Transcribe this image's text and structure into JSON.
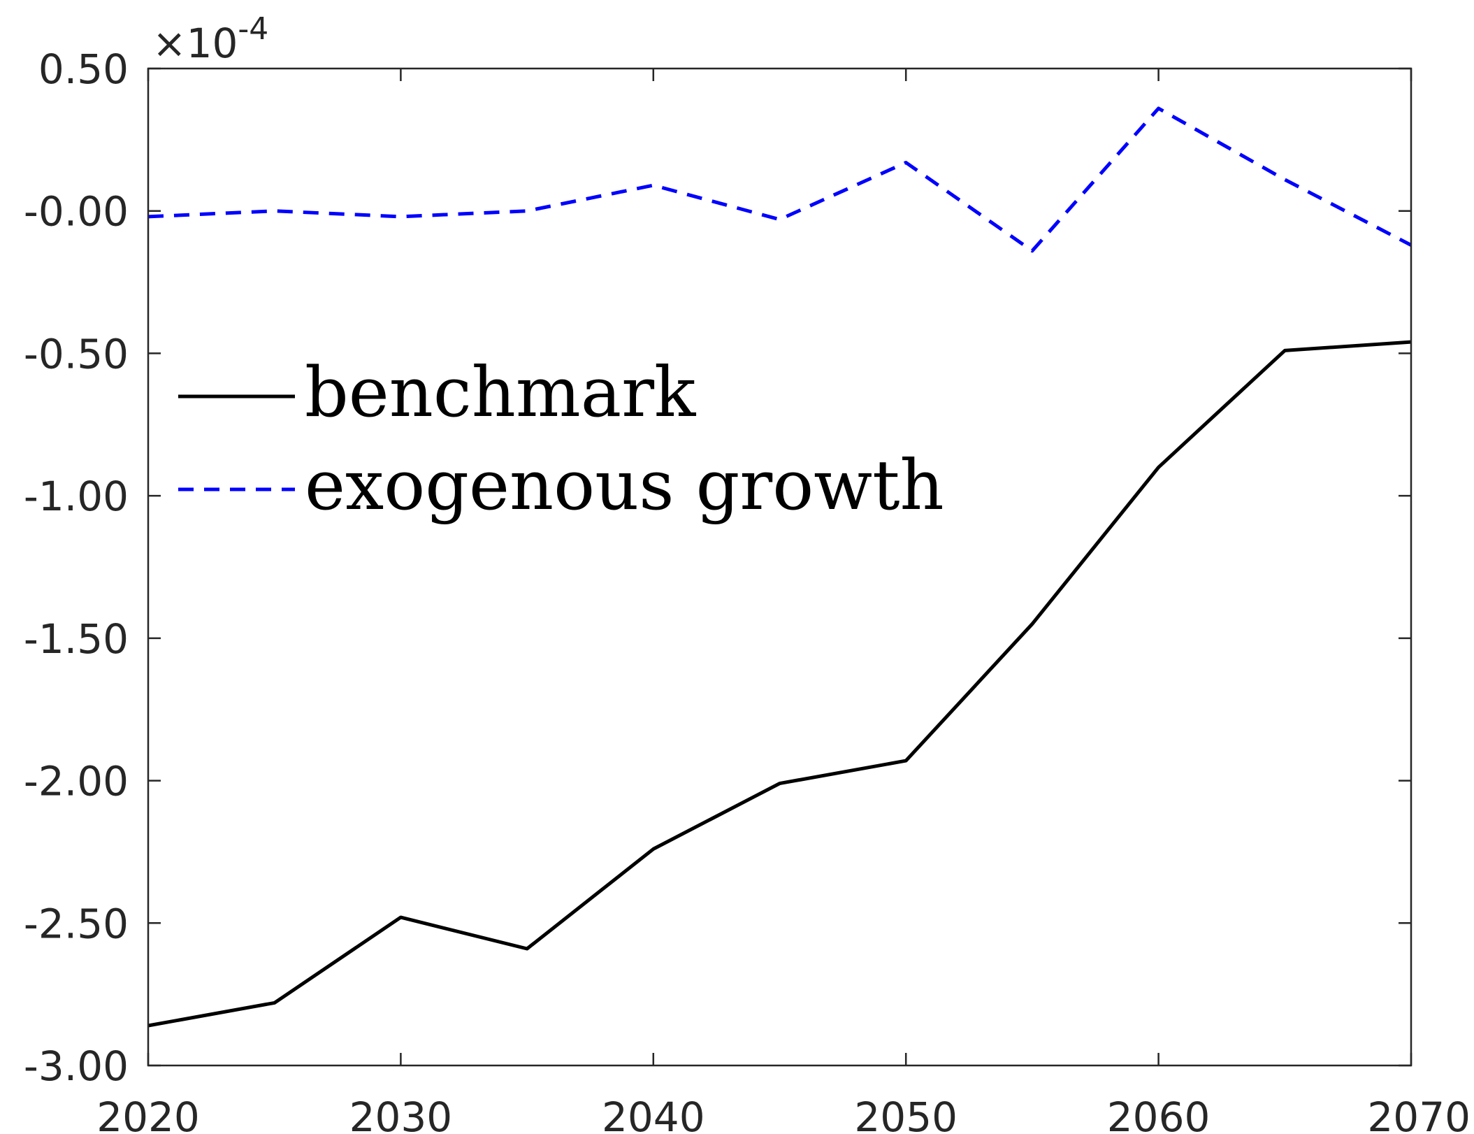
{
  "chart_data": {
    "type": "line",
    "x": [
      2020,
      2025,
      2030,
      2035,
      2040,
      2045,
      2050,
      2055,
      2060,
      2065,
      2070
    ],
    "xlim": [
      2020,
      2070
    ],
    "ylim": [
      -3.0,
      0.5
    ],
    "x_ticks": [
      2020,
      2030,
      2040,
      2050,
      2060,
      2070
    ],
    "x_tick_labels": [
      "2020",
      "2030",
      "2040",
      "2050",
      "2060",
      "2070"
    ],
    "y_ticks": [
      0.5,
      0.0,
      -0.5,
      -1.0,
      -1.5,
      -2.0,
      -2.5,
      -3.0
    ],
    "y_tick_labels": [
      "0.50",
      "-0.00",
      "-0.50",
      "-1.00",
      "-1.50",
      "-2.00",
      "-2.50",
      "-3.00"
    ],
    "y_multiplier": {
      "base": "×10",
      "exponent": "-4"
    },
    "grid": false,
    "legend_position": "center-left",
    "series": [
      {
        "name": "benchmark",
        "color": "#000000",
        "style": "solid",
        "values": [
          -2.86,
          -2.78,
          -2.48,
          -2.59,
          -2.24,
          -2.01,
          -1.93,
          -1.45,
          -0.9,
          -0.49,
          -0.46
        ]
      },
      {
        "name": "exogenous growth",
        "color": "#0000ff",
        "style": "dashed",
        "values": [
          -0.02,
          0.0,
          -0.02,
          0.0,
          0.09,
          -0.03,
          0.17,
          -0.14,
          0.36,
          0.11,
          -0.12
        ]
      }
    ]
  }
}
